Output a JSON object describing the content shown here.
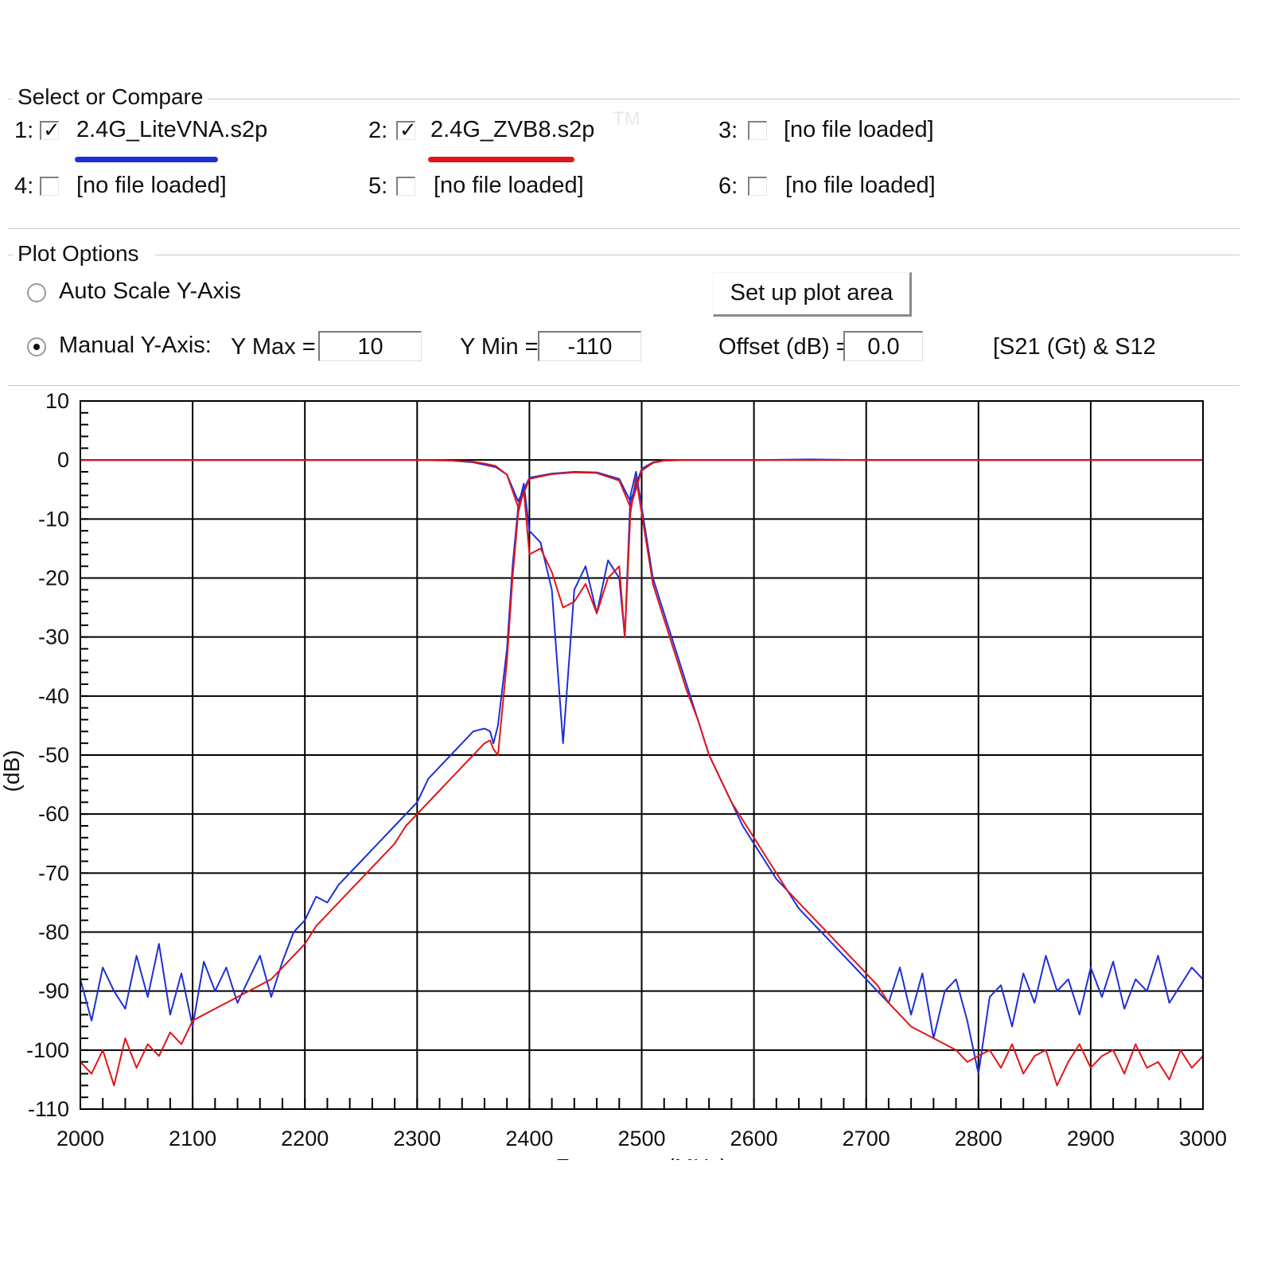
{
  "select_group": {
    "title": "Select or Compare",
    "files": [
      {
        "index": "1:",
        "label": "2.4G_LiteVNA.s2p",
        "checked": true,
        "color": "#1f2fd6"
      },
      {
        "index": "2:",
        "label": "2.4G_ZVB8.s2p",
        "checked": true,
        "color": "#e0161a"
      },
      {
        "index": "3:",
        "label": "[no file loaded]",
        "checked": false
      },
      {
        "index": "4:",
        "label": "[no file loaded]",
        "checked": false
      },
      {
        "index": "5:",
        "label": "[no file loaded]",
        "checked": false
      },
      {
        "index": "6:",
        "label": "[no file loaded]",
        "checked": false
      }
    ],
    "watermark": "TM"
  },
  "plot_options": {
    "title": "Plot Options",
    "auto_scale_label": "Auto Scale Y-Axis",
    "auto_scale_selected": false,
    "manual_label": "Manual Y-Axis:",
    "manual_selected": true,
    "ymax_label": "Y Max =",
    "ymax_value": "10",
    "ymin_label": "Y Min =",
    "ymin_value": "-110",
    "offset_label": "Offset (dB) =",
    "offset_value": "0.0",
    "setup_button": "Set up plot area",
    "mode_label": "[S21 (Gt) & S12"
  },
  "chart_data": {
    "type": "line",
    "xlabel": "Frequency (MHz)",
    "ylabel": "(dB)",
    "xlim": [
      2000,
      3000
    ],
    "ylim": [
      -110,
      10
    ],
    "xticks": [
      2000,
      2100,
      2200,
      2300,
      2400,
      2500,
      2600,
      2700,
      2800,
      2900,
      3000
    ],
    "yticks": [
      10,
      0,
      -10,
      -20,
      -30,
      -40,
      -50,
      -60,
      -70,
      -80,
      -90,
      -100,
      -110
    ],
    "grid": true,
    "series": [
      {
        "name": "2.4G_LiteVNA.s2p",
        "role": "S21",
        "color": "#1f2fd6",
        "x": [
          2000,
          2010,
          2020,
          2030,
          2040,
          2050,
          2060,
          2070,
          2080,
          2090,
          2100,
          2110,
          2120,
          2130,
          2140,
          2150,
          2160,
          2170,
          2180,
          2190,
          2200,
          2210,
          2220,
          2230,
          2240,
          2250,
          2260,
          2270,
          2280,
          2290,
          2300,
          2310,
          2320,
          2330,
          2340,
          2350,
          2360,
          2365,
          2368,
          2372,
          2380,
          2385,
          2390,
          2395,
          2400,
          2410,
          2420,
          2430,
          2440,
          2450,
          2460,
          2470,
          2480,
          2485,
          2490,
          2495,
          2500,
          2505,
          2510,
          2520,
          2530,
          2540,
          2550,
          2560,
          2570,
          2580,
          2590,
          2600,
          2610,
          2620,
          2630,
          2640,
          2650,
          2660,
          2670,
          2680,
          2690,
          2700,
          2710,
          2720,
          2730,
          2740,
          2750,
          2760,
          2770,
          2780,
          2790,
          2800,
          2810,
          2820,
          2830,
          2840,
          2850,
          2860,
          2870,
          2880,
          2890,
          2900,
          2910,
          2920,
          2930,
          2940,
          2950,
          2960,
          2970,
          2980,
          2990,
          3000
        ],
        "y": [
          -88,
          -95,
          -86,
          -90,
          -93,
          -84,
          -91,
          -82,
          -94,
          -87,
          -96,
          -85,
          -90,
          -86,
          -92,
          -88,
          -84,
          -91,
          -85,
          -80,
          -78,
          -74,
          -75,
          -72,
          -70,
          -68,
          -66,
          -64,
          -62,
          -60,
          -58,
          -54,
          -52,
          -50,
          -48,
          -46,
          -45.5,
          -46,
          -48,
          -45,
          -32,
          -18,
          -8,
          -4,
          -12,
          -14,
          -22,
          -48,
          -22,
          -18,
          -26,
          -17,
          -20,
          -30,
          -6,
          -2,
          -8,
          -14,
          -20,
          -26,
          -32,
          -38,
          -44,
          -50,
          -54,
          -58,
          -62,
          -65,
          -68,
          -71,
          -73,
          -76,
          -78,
          -80,
          -82,
          -84,
          -86,
          -88,
          -90,
          -92,
          -86,
          -94,
          -87,
          -98,
          -90,
          -88,
          -95,
          -104,
          -91,
          -89,
          -96,
          -87,
          -92,
          -84,
          -90,
          -88,
          -94,
          -86,
          -91,
          -85,
          -93,
          -88,
          -90,
          -84,
          -92,
          -89,
          -86,
          -88
        ]
      },
      {
        "name": "2.4G_ZVB8.s2p",
        "role": "S21",
        "color": "#e0161a",
        "x": [
          2000,
          2010,
          2020,
          2030,
          2040,
          2050,
          2060,
          2070,
          2080,
          2090,
          2100,
          2110,
          2120,
          2130,
          2140,
          2150,
          2160,
          2170,
          2180,
          2190,
          2200,
          2210,
          2220,
          2230,
          2240,
          2250,
          2260,
          2270,
          2280,
          2290,
          2300,
          2310,
          2320,
          2330,
          2340,
          2350,
          2360,
          2365,
          2368,
          2372,
          2380,
          2385,
          2390,
          2395,
          2400,
          2410,
          2420,
          2430,
          2440,
          2450,
          2460,
          2470,
          2480,
          2485,
          2490,
          2495,
          2500,
          2505,
          2510,
          2520,
          2530,
          2540,
          2550,
          2560,
          2570,
          2580,
          2590,
          2600,
          2610,
          2620,
          2630,
          2640,
          2650,
          2660,
          2670,
          2680,
          2690,
          2700,
          2710,
          2720,
          2730,
          2740,
          2750,
          2760,
          2770,
          2780,
          2790,
          2800,
          2810,
          2820,
          2830,
          2840,
          2850,
          2860,
          2870,
          2880,
          2890,
          2900,
          2910,
          2920,
          2930,
          2940,
          2950,
          2960,
          2970,
          2980,
          2990,
          3000
        ],
        "y": [
          -102,
          -104,
          -100,
          -106,
          -98,
          -103,
          -99,
          -101,
          -97,
          -99,
          -95,
          -94,
          -93,
          -92,
          -91,
          -90,
          -89,
          -88,
          -86,
          -84,
          -82,
          -79,
          -77,
          -75,
          -73,
          -71,
          -69,
          -67,
          -65,
          -62,
          -60,
          -58,
          -56,
          -54,
          -52,
          -50,
          -48,
          -47.5,
          -49,
          -50,
          -34,
          -20,
          -9,
          -5,
          -16,
          -15,
          -19,
          -25,
          -24,
          -21,
          -26,
          -20,
          -18,
          -30,
          -9,
          -3,
          -9,
          -15,
          -21,
          -27,
          -33,
          -39,
          -44,
          -50,
          -54,
          -58,
          -61,
          -64,
          -67,
          -70,
          -73,
          -75,
          -77,
          -79,
          -81,
          -83,
          -85,
          -87,
          -89,
          -92,
          -94,
          -96,
          -97,
          -98,
          -99,
          -100,
          -102,
          -101,
          -100,
          -103,
          -99,
          -104,
          -101,
          -100,
          -106,
          -102,
          -99,
          -103,
          -101,
          -100,
          -104,
          -99,
          -103,
          -102,
          -105,
          -100,
          -103,
          -101
        ]
      },
      {
        "name": "2.4G_LiteVNA.s2p",
        "role": "S11",
        "color": "#1f2fd6",
        "x": [
          2000,
          2050,
          2100,
          2150,
          2200,
          2250,
          2300,
          2330,
          2350,
          2360,
          2370,
          2380,
          2390,
          2400,
          2420,
          2440,
          2460,
          2480,
          2490,
          2500,
          2510,
          2520,
          2540,
          2560,
          2600,
          2650,
          2700,
          2750,
          2800,
          2850,
          2900,
          2950,
          3000
        ],
        "y": [
          0,
          0,
          0,
          0,
          0,
          0,
          0,
          -0.1,
          -0.4,
          -0.8,
          -1.2,
          -2.5,
          -7,
          -3,
          -2.3,
          -2.0,
          -2.1,
          -3.2,
          -7,
          -1.5,
          -0.4,
          -0.1,
          0,
          0,
          0,
          0.1,
          0,
          0,
          0,
          0,
          0,
          0,
          0
        ]
      },
      {
        "name": "2.4G_ZVB8.s2p",
        "role": "S11",
        "color": "#e0161a",
        "x": [
          2000,
          2050,
          2100,
          2150,
          2200,
          2250,
          2300,
          2330,
          2350,
          2360,
          2370,
          2380,
          2390,
          2400,
          2420,
          2440,
          2460,
          2480,
          2490,
          2500,
          2510,
          2520,
          2540,
          2560,
          2600,
          2650,
          2700,
          2750,
          2800,
          2850,
          2900,
          2950,
          3000
        ],
        "y": [
          0,
          0,
          0,
          0,
          0,
          0,
          0,
          -0.1,
          -0.3,
          -0.6,
          -1.0,
          -2.5,
          -8,
          -3.2,
          -2.4,
          -2.1,
          -2.2,
          -3.5,
          -8,
          -1.8,
          -0.5,
          -0.1,
          0,
          0,
          0,
          0,
          0,
          0,
          0,
          0,
          0,
          0,
          0
        ]
      }
    ]
  }
}
